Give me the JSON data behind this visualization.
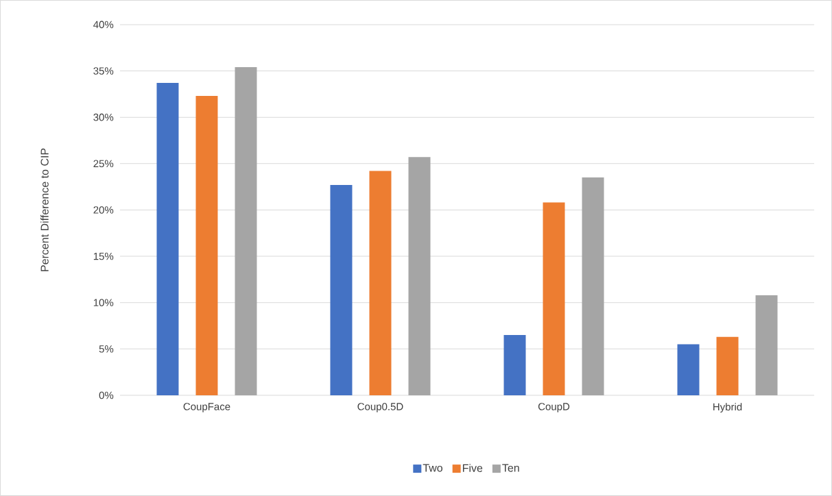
{
  "chart_data": {
    "type": "bar",
    "ylabel": "Percent Difference to CIP",
    "categories": [
      "CoupFace",
      "Coup0.5D",
      "CoupD",
      "Hybrid"
    ],
    "series": [
      {
        "name": "Two",
        "color": "#4472c4",
        "values": [
          33.7,
          22.7,
          6.5,
          5.5
        ]
      },
      {
        "name": "Five",
        "color": "#ed7d31",
        "values": [
          32.3,
          24.2,
          20.8,
          6.3
        ]
      },
      {
        "name": "Ten",
        "color": "#a5a5a5",
        "values": [
          35.4,
          25.7,
          23.5,
          10.8
        ]
      }
    ],
    "ylim": [
      0,
      40
    ],
    "yticks": [
      {
        "value": 0,
        "label": "0%"
      },
      {
        "value": 5,
        "label": "5%"
      },
      {
        "value": 10,
        "label": "10%"
      },
      {
        "value": 15,
        "label": "15%"
      },
      {
        "value": 20,
        "label": "20%"
      },
      {
        "value": 25,
        "label": "25%"
      },
      {
        "value": 30,
        "label": "30%"
      },
      {
        "value": 35,
        "label": "35%"
      },
      {
        "value": 40,
        "label": "40%"
      }
    ],
    "grid": "y",
    "legend": "bottom"
  }
}
